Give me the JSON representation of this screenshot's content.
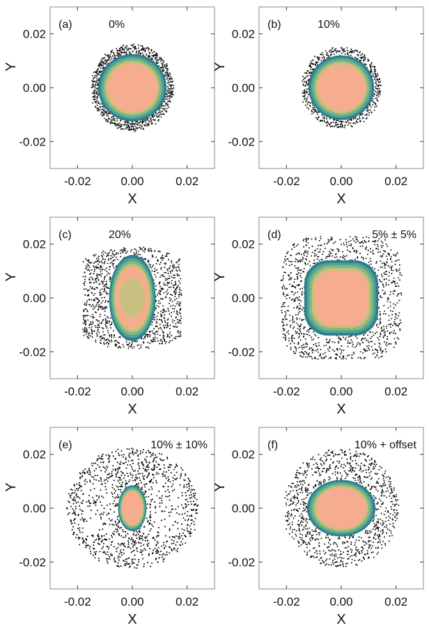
{
  "figure": {
    "colors": {
      "dots": "#111111",
      "frame": "#888888",
      "contour_dark_teal": "#2f7f8a",
      "contour_teal": "#4fa39a",
      "contour_green": "#88b87a",
      "contour_olive": "#c7c080",
      "contour_peach": "#f6ad8f"
    }
  },
  "chart_data": [
    {
      "panel_label": "(a)",
      "annotation": "0%",
      "type": "scatter",
      "xlabel": "X",
      "ylabel": "Y",
      "xlim": [
        -0.03,
        0.03
      ],
      "ylim": [
        -0.03,
        0.03
      ],
      "xticks": [
        "-0.02",
        "0.00",
        "0.02"
      ],
      "yticks": [
        "0.02",
        "0.00",
        "-0.02"
      ],
      "xtick_values": [
        -0.02,
        0.0,
        0.02
      ],
      "ytick_values": [
        0.02,
        0.0,
        -0.02
      ],
      "spread": {
        "shape": "disk",
        "radius_x": 0.015,
        "radius_y": 0.016
      },
      "core": {
        "shape": "disk",
        "radius_x": 0.0125,
        "radius_y": 0.0125
      }
    },
    {
      "panel_label": "(b)",
      "annotation": "10%",
      "type": "scatter",
      "xlabel": "X",
      "ylabel": "Y",
      "xlim": [
        -0.03,
        0.03
      ],
      "ylim": [
        -0.03,
        0.03
      ],
      "xticks": [
        "-0.02",
        "0.00",
        "0.02"
      ],
      "yticks": [
        "0.02",
        "0.00",
        "-0.02"
      ],
      "xtick_values": [
        -0.02,
        0.0,
        0.02
      ],
      "ytick_values": [
        0.02,
        0.0,
        -0.02
      ],
      "spread": {
        "shape": "disk",
        "radius_x": 0.0145,
        "radius_y": 0.015
      },
      "core": {
        "shape": "disk",
        "radius_x": 0.012,
        "radius_y": 0.012
      }
    },
    {
      "panel_label": "(c)",
      "annotation": "20%",
      "type": "scatter",
      "xlabel": "X",
      "ylabel": "Y",
      "xlim": [
        -0.03,
        0.03
      ],
      "ylim": [
        -0.03,
        0.03
      ],
      "xticks": [
        "-0.02",
        "0.00",
        "0.02"
      ],
      "yticks": [
        "0.02",
        "0.00",
        "-0.02"
      ],
      "xtick_values": [
        -0.02,
        0.0,
        0.02
      ],
      "ytick_values": [
        0.02,
        0.0,
        -0.02
      ],
      "spread": {
        "shape": "wings",
        "radius_x": 0.018,
        "radius_y": 0.019
      },
      "core": {
        "shape": "ellipse",
        "radius_x": 0.0085,
        "radius_y": 0.016
      }
    },
    {
      "panel_label": "(d)",
      "annotation": "5% ± 5%",
      "type": "scatter",
      "xlabel": "X",
      "ylabel": "Y",
      "xlim": [
        -0.03,
        0.03
      ],
      "ylim": [
        -0.03,
        0.03
      ],
      "xticks": [
        "-0.02",
        "0.00",
        "0.02"
      ],
      "yticks": [
        "0.02",
        "0.00",
        "-0.02"
      ],
      "xtick_values": [
        -0.02,
        0.0,
        0.02
      ],
      "ytick_values": [
        0.02,
        0.0,
        -0.02
      ],
      "spread": {
        "shape": "squircle",
        "radius_x": 0.022,
        "radius_y": 0.023
      },
      "core": {
        "shape": "squircle",
        "radius_x": 0.0135,
        "radius_y": 0.014
      }
    },
    {
      "panel_label": "(e)",
      "annotation": "10% ± 10%",
      "type": "scatter",
      "xlabel": "X",
      "ylabel": "Y",
      "xlim": [
        -0.03,
        0.03
      ],
      "ylim": [
        -0.03,
        0.03
      ],
      "xticks": [
        "-0.02",
        "0.00",
        "0.02"
      ],
      "yticks": [
        "0.02",
        "0.00",
        "-0.02"
      ],
      "xtick_values": [
        -0.02,
        0.0,
        0.02
      ],
      "ytick_values": [
        0.02,
        0.0,
        -0.02
      ],
      "spread": {
        "shape": "hourglass",
        "radius_x": 0.024,
        "radius_y": 0.0225
      },
      "core": {
        "shape": "ellipse",
        "radius_x": 0.0052,
        "radius_y": 0.0085
      }
    },
    {
      "panel_label": "(f)",
      "annotation": "10% + offset",
      "type": "scatter",
      "xlabel": "X",
      "ylabel": "Y",
      "xlim": [
        -0.03,
        0.03
      ],
      "ylim": [
        -0.03,
        0.03
      ],
      "xticks": [
        "-0.02",
        "0.00",
        "0.02"
      ],
      "yticks": [
        "0.02",
        "0.00",
        "-0.02"
      ],
      "xtick_values": [
        -0.02,
        0.0,
        0.02
      ],
      "ytick_values": [
        0.02,
        0.0,
        -0.02
      ],
      "spread": {
        "shape": "disk",
        "radius_x": 0.021,
        "radius_y": 0.022
      },
      "core": {
        "shape": "ellipse",
        "radius_x": 0.0125,
        "radius_y": 0.0105
      }
    }
  ]
}
